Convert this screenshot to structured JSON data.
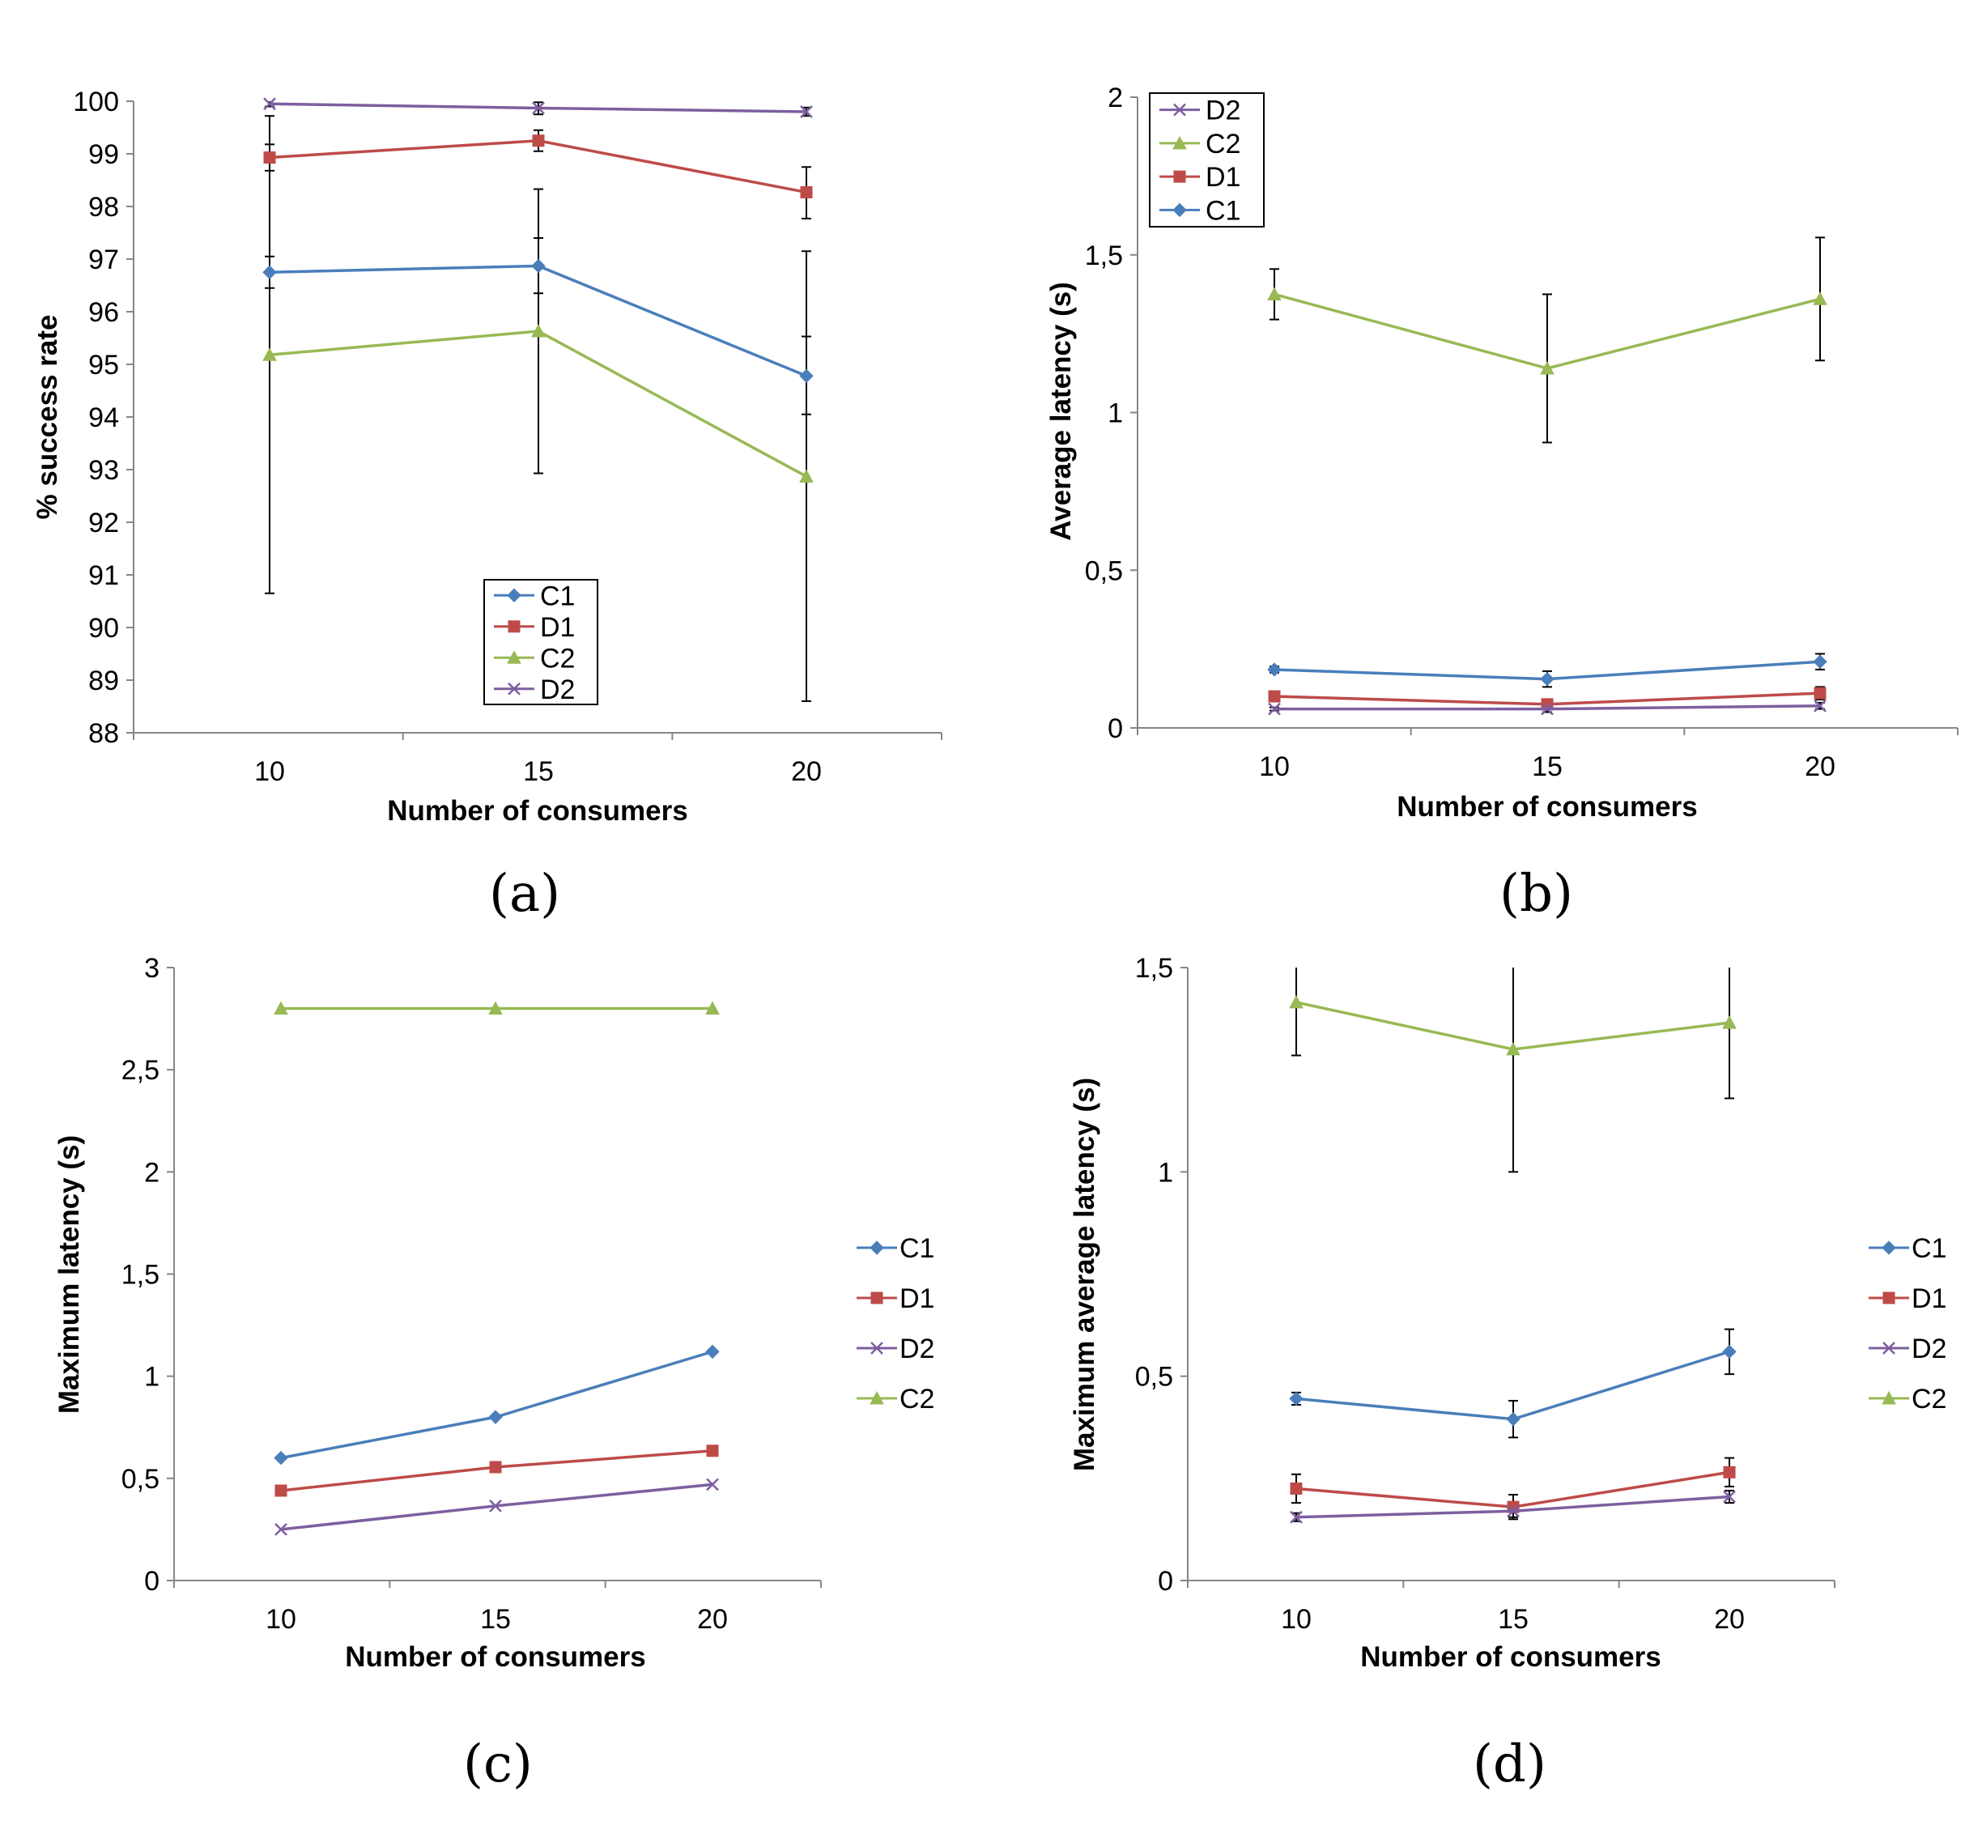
{
  "colors": {
    "C1": "#4a7ebb",
    "D1": "#be4b48",
    "C2": "#98b954",
    "D2": "#7d5fa0",
    "axis": "#868686"
  },
  "markers": {
    "C1": "diamond",
    "D1": "square",
    "C2": "triangle",
    "D2": "cross"
  },
  "chart_data": [
    {
      "id": "a",
      "panel_label": "(a)",
      "type": "line",
      "xlabel": "Number of consumers",
      "ylabel": "% success rate",
      "categories": [
        "10",
        "15",
        "20"
      ],
      "ylim": [
        88,
        100
      ],
      "yticks": [
        88,
        89,
        90,
        91,
        92,
        93,
        94,
        95,
        96,
        97,
        98,
        99,
        100
      ],
      "ytick_labels": [
        "88",
        "89",
        "90",
        "91",
        "92",
        "93",
        "94",
        "95",
        "96",
        "97",
        "98",
        "99",
        "100"
      ],
      "legend_position": "bottom-center",
      "legend_order": [
        "C1",
        "D1",
        "C2",
        "D2"
      ],
      "series": [
        {
          "name": "C1",
          "values": [
            96.75,
            96.87,
            94.78
          ],
          "err_low": [
            96.45,
            96.35,
            94.05
          ],
          "err_high": [
            97.05,
            97.4,
            95.53
          ]
        },
        {
          "name": "D1",
          "values": [
            98.93,
            99.25,
            98.27
          ],
          "err_low": [
            98.68,
            99.05,
            97.77
          ],
          "err_high": [
            99.18,
            99.45,
            98.75
          ]
        },
        {
          "name": "C2",
          "values": [
            95.18,
            95.63,
            92.87
          ],
          "err_low": [
            90.65,
            92.93,
            88.6
          ],
          "err_high": [
            99.72,
            98.33,
            97.15
          ]
        },
        {
          "name": "D2",
          "values": [
            99.95,
            99.87,
            99.8
          ],
          "err_low": [
            99.9,
            99.75,
            99.72
          ],
          "err_high": [
            100.0,
            99.98,
            99.88
          ]
        }
      ]
    },
    {
      "id": "b",
      "panel_label": "(b)",
      "type": "line",
      "xlabel": "Number of consumers",
      "ylabel": "Average latency (s)",
      "categories": [
        "10",
        "15",
        "20"
      ],
      "ylim": [
        0,
        2
      ],
      "yticks": [
        0,
        0.5,
        1,
        1.5,
        2
      ],
      "ytick_labels": [
        "0",
        "0,5",
        "1",
        "1,5",
        "2"
      ],
      "legend_position": "top-left",
      "legend_order": [
        "D2",
        "C2",
        "D1",
        "C1"
      ],
      "series": [
        {
          "name": "C1",
          "values": [
            0.185,
            0.155,
            0.21
          ],
          "err_low": [
            0.175,
            0.13,
            0.185
          ],
          "err_high": [
            0.195,
            0.18,
            0.235
          ]
        },
        {
          "name": "D1",
          "values": [
            0.1,
            0.075,
            0.11
          ],
          "err_low": [
            0.085,
            0.06,
            0.09
          ],
          "err_high": [
            0.115,
            0.09,
            0.13
          ]
        },
        {
          "name": "C2",
          "values": [
            1.375,
            1.14,
            1.36
          ],
          "err_low": [
            1.295,
            0.905,
            1.165
          ],
          "err_high": [
            1.455,
            1.375,
            1.555
          ]
        },
        {
          "name": "D2",
          "values": [
            0.06,
            0.06,
            0.07
          ],
          "err_low": [
            0.055,
            0.05,
            0.06
          ],
          "err_high": [
            0.065,
            0.07,
            0.08
          ]
        }
      ]
    },
    {
      "id": "c",
      "panel_label": "(c)",
      "type": "line",
      "xlabel": "Number of consumers",
      "ylabel": "Maximum latency (s)",
      "categories": [
        "10",
        "15",
        "20"
      ],
      "ylim": [
        0,
        3
      ],
      "yticks": [
        0,
        0.5,
        1,
        1.5,
        2,
        2.5,
        3
      ],
      "ytick_labels": [
        "0",
        "0,5",
        "1",
        "1,5",
        "2",
        "2,5",
        "3"
      ],
      "legend_position": "right",
      "legend_order": [
        "C1",
        "D1",
        "D2",
        "C2"
      ],
      "series": [
        {
          "name": "C1",
          "values": [
            0.6,
            0.8,
            1.12
          ]
        },
        {
          "name": "D1",
          "values": [
            0.44,
            0.555,
            0.635
          ]
        },
        {
          "name": "D2",
          "values": [
            0.25,
            0.365,
            0.47
          ]
        },
        {
          "name": "C2",
          "values": [
            2.8,
            2.8,
            2.8
          ]
        }
      ]
    },
    {
      "id": "d",
      "panel_label": "(d)",
      "type": "line",
      "xlabel": "Number of consumers",
      "ylabel": "Maximum average latency (s)",
      "categories": [
        "10",
        "15",
        "20"
      ],
      "ylim": [
        0,
        1.5
      ],
      "yticks": [
        0,
        0.5,
        1,
        1.5
      ],
      "ytick_labels": [
        "0",
        "0,5",
        "1",
        "1,5"
      ],
      "legend_position": "right",
      "legend_order": [
        "C1",
        "D1",
        "D2",
        "C2"
      ],
      "series": [
        {
          "name": "C1",
          "values": [
            0.445,
            0.395,
            0.56
          ],
          "err_low": [
            0.43,
            0.35,
            0.505
          ],
          "err_high": [
            0.46,
            0.44,
            0.615
          ]
        },
        {
          "name": "D1",
          "values": [
            0.225,
            0.18,
            0.265
          ],
          "err_low": [
            0.19,
            0.15,
            0.23
          ],
          "err_high": [
            0.26,
            0.21,
            0.3
          ]
        },
        {
          "name": "D2",
          "values": [
            0.155,
            0.17,
            0.205
          ],
          "err_low": [
            0.145,
            0.155,
            0.19
          ],
          "err_high": [
            0.165,
            0.185,
            0.22
          ]
        },
        {
          "name": "C2",
          "values": [
            1.415,
            1.3,
            1.365
          ],
          "err_low": [
            1.285,
            1.0,
            1.18
          ],
          "err_high": [
            1.5,
            1.5,
            1.5
          ]
        }
      ]
    }
  ]
}
